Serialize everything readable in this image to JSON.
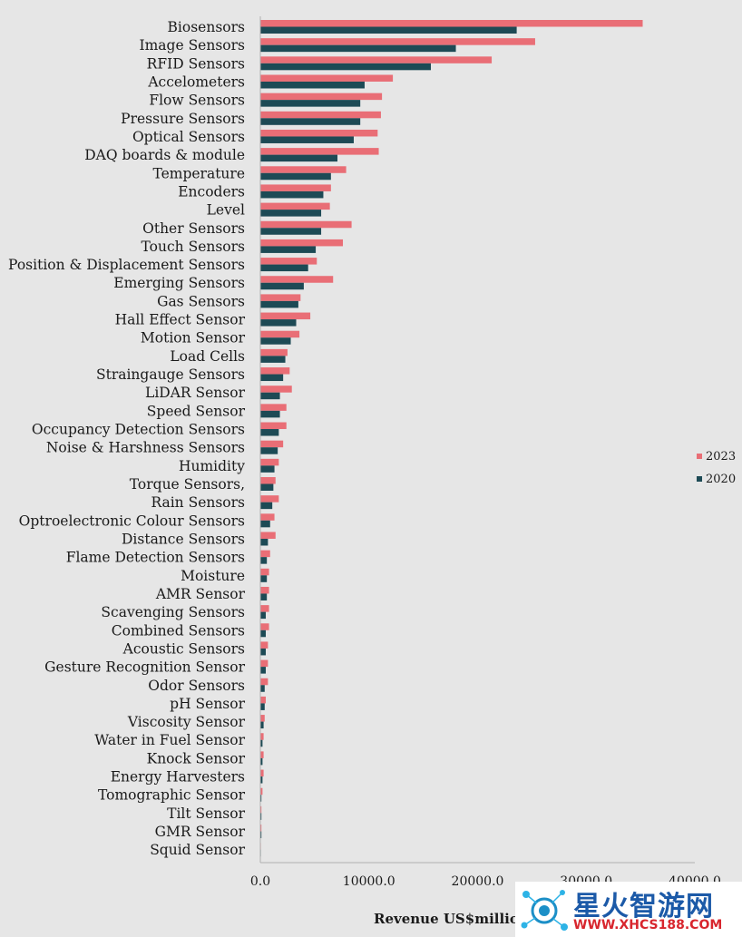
{
  "colors": {
    "series_2023": "#e96e76",
    "series_2020": "#1d4a55",
    "background": "#e6e6e6",
    "axis": "#b0b0b0"
  },
  "chart_data": {
    "type": "bar",
    "orientation": "horizontal",
    "title": "",
    "xlabel": "Revenue US$million",
    "ylabel": "",
    "xlim": [
      0,
      40000
    ],
    "xticks": [
      "0.0",
      "10000.0",
      "20000.0",
      "30000.0",
      "40000.0"
    ],
    "grid": false,
    "legend_position": "right",
    "categories": [
      "Biosensors",
      "Image Sensors",
      "RFID Sensors",
      "Accelometers",
      "Flow Sensors",
      "Pressure Sensors",
      "Optical Sensors",
      "DAQ boards & module",
      "Temperature",
      "Encoders",
      "Level",
      "Other Sensors",
      "Touch Sensors",
      "Position & Displacement Sensors",
      "Emerging Sensors",
      "Gas Sensors",
      "Hall Effect Sensor",
      "Motion Sensor",
      "Load Cells",
      "Straingauge Sensors",
      "LiDAR Sensor",
      "Speed Sensor",
      "Occupancy Detection Sensors",
      "Noise & Harshness Sensors",
      "Humidity",
      "Torque Sensors,",
      "Rain Sensors",
      "Optroelectronic Colour Sensors",
      "Distance Sensors",
      "Flame Detection Sensors",
      "Moisture",
      "AMR Sensor",
      "Scavenging Sensors",
      "Combined Sensors",
      "Acoustic Sensors",
      "Gesture Recognition Sensor",
      "Odor Sensors",
      "pH Sensor",
      "Viscosity Sensor",
      "Water in Fuel Sensor",
      "Knock Sensor",
      "Energy Harvesters",
      "Tomographic Sensor",
      "Tilt Sensor",
      "GMR Sensor",
      "Squid Sensor"
    ],
    "series": [
      {
        "name": "2023",
        "values": [
          35200,
          25300,
          21300,
          12200,
          11200,
          11100,
          10800,
          10900,
          7900,
          6500,
          6400,
          8400,
          7600,
          5200,
          6700,
          3700,
          4600,
          3600,
          2500,
          2700,
          2900,
          2400,
          2400,
          2100,
          1700,
          1400,
          1700,
          1300,
          1400,
          900,
          800,
          800,
          800,
          800,
          700,
          700,
          700,
          500,
          400,
          300,
          300,
          300,
          200,
          100,
          100,
          50
        ]
      },
      {
        "name": "2020",
        "values": [
          23600,
          18000,
          15700,
          9600,
          9200,
          9200,
          8600,
          7100,
          6500,
          5800,
          5600,
          5600,
          5100,
          4400,
          4000,
          3500,
          3300,
          2800,
          2300,
          2100,
          1800,
          1800,
          1700,
          1600,
          1300,
          1200,
          1100,
          900,
          700,
          600,
          600,
          600,
          500,
          500,
          500,
          500,
          400,
          400,
          300,
          200,
          200,
          200,
          100,
          100,
          100,
          50
        ]
      }
    ]
  },
  "watermark": {
    "title": "星火智游网",
    "url": "WWW.XHCS188.COM"
  }
}
